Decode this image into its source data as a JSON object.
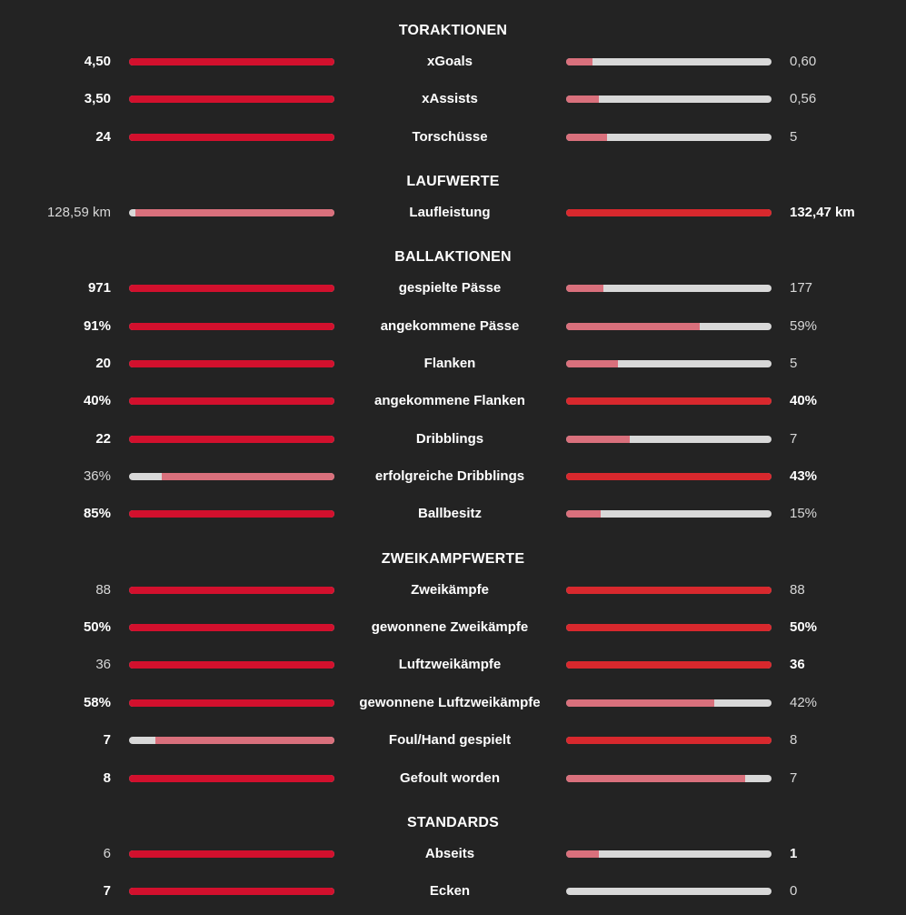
{
  "colors": {
    "background": "#232323",
    "track": "#d8d8d8",
    "winner_fill": "#d2102d",
    "loser_fill": "#d9707c"
  },
  "sections": [
    {
      "title": "TORAKTIONEN",
      "rows": [
        {
          "label": "xGoals",
          "left": "4,50",
          "right": "0,60",
          "left_fill": 1.0,
          "right_fill": 0.13,
          "left_bold": true,
          "right_bold": false
        },
        {
          "label": "xAssists",
          "left": "3,50",
          "right": "0,56",
          "left_fill": 1.0,
          "right_fill": 0.16,
          "left_bold": true,
          "right_bold": false
        },
        {
          "label": "Torschüsse",
          "left": "24",
          "right": "5",
          "left_fill": 1.0,
          "right_fill": 0.2,
          "left_bold": true,
          "right_bold": false
        }
      ]
    },
    {
      "title": "LAUFWERTE",
      "rows": [
        {
          "label": "Laufleistung",
          "left": "128,59 km",
          "right": "132,47 km",
          "left_fill": 0.97,
          "right_fill": 1.0,
          "left_bold": false,
          "right_bold": true
        }
      ]
    },
    {
      "title": "BALLAKTIONEN",
      "rows": [
        {
          "label": "gespielte Pässe",
          "left": "971",
          "right": "177",
          "left_fill": 1.0,
          "right_fill": 0.18,
          "left_bold": true,
          "right_bold": false
        },
        {
          "label": "angekommene Pässe",
          "left": "91%",
          "right": "59%",
          "left_fill": 1.0,
          "right_fill": 0.65,
          "left_bold": true,
          "right_bold": false
        },
        {
          "label": "Flanken",
          "left": "20",
          "right": "5",
          "left_fill": 1.0,
          "right_fill": 0.25,
          "left_bold": true,
          "right_bold": false
        },
        {
          "label": "angekommene Flanken",
          "left": "40%",
          "right": "40%",
          "left_fill": 1.0,
          "right_fill": 1.0,
          "left_bold": true,
          "right_bold": true
        },
        {
          "label": "Dribblings",
          "left": "22",
          "right": "7",
          "left_fill": 1.0,
          "right_fill": 0.31,
          "left_bold": true,
          "right_bold": false
        },
        {
          "label": "erfolgreiche Dribblings",
          "left": "36%",
          "right": "43%",
          "left_fill": 0.84,
          "right_fill": 1.0,
          "left_bold": false,
          "right_bold": true
        },
        {
          "label": "Ballbesitz",
          "left": "85%",
          "right": "15%",
          "left_fill": 1.0,
          "right_fill": 0.17,
          "left_bold": true,
          "right_bold": false
        }
      ]
    },
    {
      "title": "ZWEIKAMPFWERTE",
      "rows": [
        {
          "label": "Zweikämpfe",
          "left": "88",
          "right": "88",
          "left_fill": 1.0,
          "right_fill": 1.0,
          "left_bold": false,
          "right_bold": false
        },
        {
          "label": "gewonnene Zweikämpfe",
          "left": "50%",
          "right": "50%",
          "left_fill": 1.0,
          "right_fill": 1.0,
          "left_bold": true,
          "right_bold": true
        },
        {
          "label": "Luftzweikämpfe",
          "left": "36",
          "right": "36",
          "left_fill": 1.0,
          "right_fill": 1.0,
          "left_bold": false,
          "right_bold": true
        },
        {
          "label": "gewonnene Luftzweikämpfe",
          "left": "58%",
          "right": "42%",
          "left_fill": 1.0,
          "right_fill": 0.72,
          "left_bold": true,
          "right_bold": false
        },
        {
          "label": "Foul/Hand gespielt",
          "left": "7",
          "right": "8",
          "left_fill": 0.87,
          "right_fill": 1.0,
          "left_bold": true,
          "right_bold": false
        },
        {
          "label": "Gefoult worden",
          "left": "8",
          "right": "7",
          "left_fill": 1.0,
          "right_fill": 0.87,
          "left_bold": true,
          "right_bold": false
        }
      ]
    },
    {
      "title": "STANDARDS",
      "rows": [
        {
          "label": "Abseits",
          "left": "6",
          "right": "1",
          "left_fill": 1.0,
          "right_fill": 0.16,
          "left_bold": false,
          "right_bold": true
        },
        {
          "label": "Ecken",
          "left": "7",
          "right": "0",
          "left_fill": 1.0,
          "right_fill": 0.0,
          "left_bold": true,
          "right_bold": false
        }
      ]
    }
  ]
}
